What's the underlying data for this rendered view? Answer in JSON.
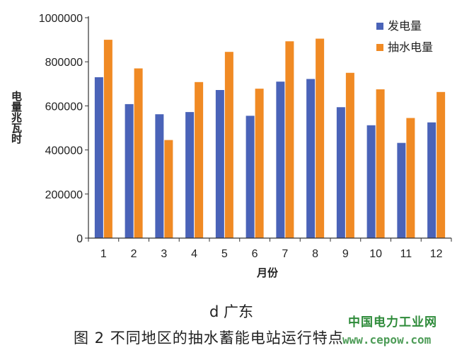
{
  "chart_data": {
    "type": "bar",
    "categories": [
      "1",
      "2",
      "3",
      "4",
      "5",
      "6",
      "7",
      "8",
      "9",
      "10",
      "11",
      "12"
    ],
    "series": [
      {
        "name": "发电量",
        "color": "#4a63b8",
        "values": [
          730000,
          608000,
          562000,
          572000,
          672000,
          555000,
          710000,
          722000,
          594000,
          512000,
          432000,
          525000
        ]
      },
      {
        "name": "抽水电量",
        "color": "#f08a24",
        "values": [
          900000,
          770000,
          445000,
          708000,
          845000,
          678000,
          893000,
          905000,
          750000,
          675000,
          545000,
          663000
        ]
      }
    ],
    "yticks": [
      "0",
      "200000",
      "400000",
      "600000",
      "800000",
      "1000000"
    ],
    "ylim": [
      0,
      1000000
    ],
    "xlabel": "月份",
    "ylabel": "电量兆瓦时",
    "legend_position": "top-right"
  },
  "subcaption": "d 广东",
  "caption": "图 2   不同地区的抽水蓄能电站运行特点",
  "watermark": {
    "line1": "中国电力工业网",
    "line2": "www.cepow.com"
  }
}
